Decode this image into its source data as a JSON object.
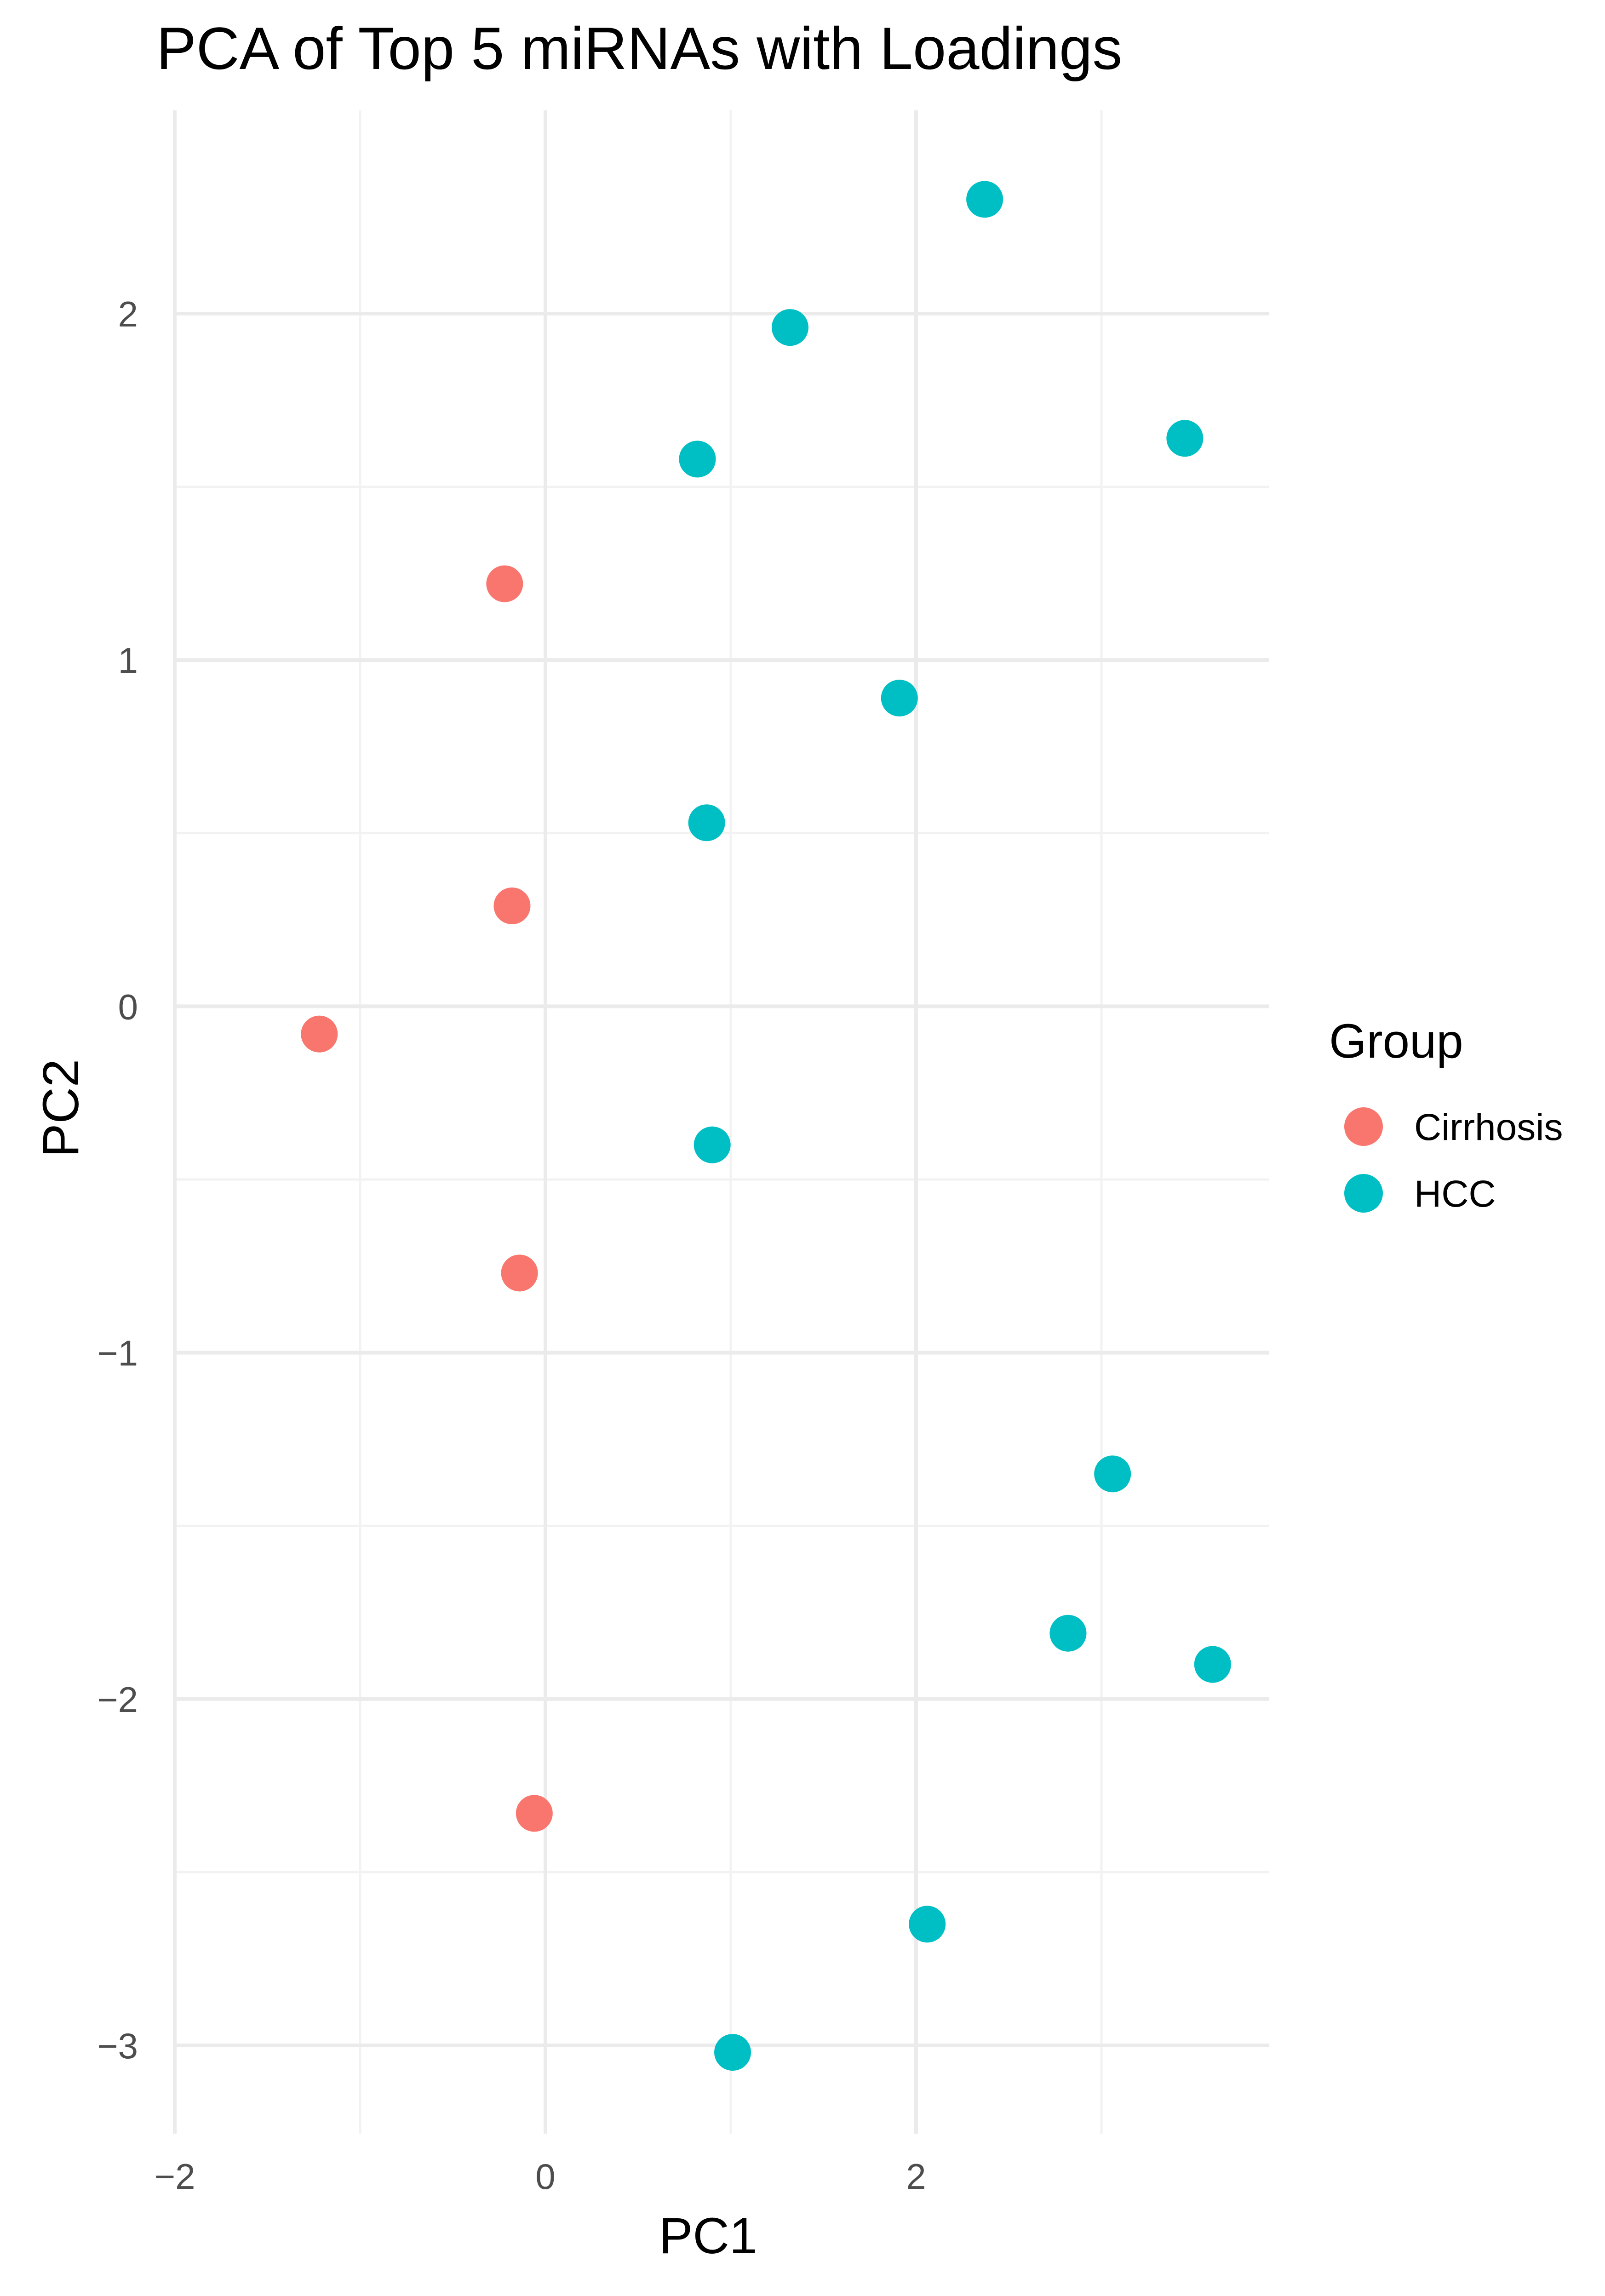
{
  "chart_data": {
    "type": "scatter",
    "title": "PCA of Top 5 miRNAs with Loadings",
    "xlabel": "PC1",
    "ylabel": "PC2",
    "xlim": [
      -2.1,
      3.8
    ],
    "ylim": [
      -3.3,
      2.5
    ],
    "x_ticks": [
      -2,
      0,
      2
    ],
    "y_ticks": [
      -3,
      -2,
      -1,
      0,
      1,
      2
    ],
    "x_tick_labels": [
      "−2",
      "0",
      "2"
    ],
    "y_tick_labels": [
      "−3",
      "−2",
      "−1",
      "0",
      "1",
      "2"
    ],
    "grid": true,
    "legend": {
      "title": "Group",
      "position": "right",
      "entries": [
        "Cirrhosis",
        "HCC"
      ]
    },
    "colors": {
      "Cirrhosis": "#f8766d",
      "HCC": "#00bfc4"
    },
    "series": [
      {
        "name": "Cirrhosis",
        "points": [
          {
            "x": -0.22,
            "y": 1.22
          },
          {
            "x": -0.18,
            "y": 0.29
          },
          {
            "x": -1.22,
            "y": -0.08
          },
          {
            "x": -0.14,
            "y": -0.77
          },
          {
            "x": -0.06,
            "y": -2.33
          }
        ]
      },
      {
        "name": "HCC",
        "points": [
          {
            "x": 2.37,
            "y": 2.33
          },
          {
            "x": 1.32,
            "y": 1.96
          },
          {
            "x": 3.45,
            "y": 1.64
          },
          {
            "x": 0.82,
            "y": 1.58
          },
          {
            "x": 1.91,
            "y": 0.89
          },
          {
            "x": 0.87,
            "y": 0.53
          },
          {
            "x": 0.9,
            "y": -0.4
          },
          {
            "x": 3.06,
            "y": -1.35
          },
          {
            "x": 2.82,
            "y": -1.81
          },
          {
            "x": 3.6,
            "y": -1.9
          },
          {
            "x": 2.06,
            "y": -2.65
          },
          {
            "x": 1.01,
            "y": -3.02
          }
        ]
      }
    ]
  }
}
